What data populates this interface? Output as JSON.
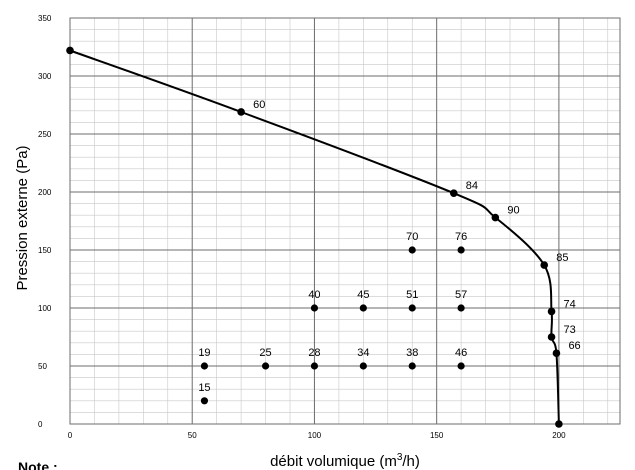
{
  "chart_data": {
    "type": "scatter",
    "xlabel_main": "débit volumique (m",
    "xlabel_sup": "3",
    "xlabel_end": "/h)",
    "ylabel": "Pression externe (Pa)",
    "note": "Note :",
    "xlim": [
      0,
      225
    ],
    "ylim": [
      0,
      350
    ],
    "x_ticks": [
      0,
      50,
      100,
      150,
      200
    ],
    "y_ticks": [
      0,
      50,
      100,
      150,
      200,
      250,
      300,
      350
    ],
    "minor_x_step": 10,
    "minor_y_step": 10,
    "grid": true,
    "colors": {
      "major_grid": "#6e6e6e",
      "minor_grid": "#c8c8c8",
      "curve": "#000000",
      "point": "#000000"
    },
    "curve_points": [
      {
        "x": 0,
        "y": 322
      },
      {
        "x": 70,
        "y": 269,
        "label": "60"
      },
      {
        "x": 157,
        "y": 199,
        "label": "84"
      },
      {
        "x": 174,
        "y": 178,
        "label": "90"
      },
      {
        "x": 194,
        "y": 137,
        "label": "85"
      },
      {
        "x": 197,
        "y": 97,
        "label": "74"
      },
      {
        "x": 197,
        "y": 75,
        "label": "73"
      },
      {
        "x": 199,
        "y": 61,
        "label": "66"
      },
      {
        "x": 200,
        "y": 0
      }
    ],
    "points": [
      {
        "x": 55,
        "y": 20,
        "label": "15"
      },
      {
        "x": 55,
        "y": 50,
        "label": "19"
      },
      {
        "x": 80,
        "y": 50,
        "label": "25"
      },
      {
        "x": 100,
        "y": 50,
        "label": "28"
      },
      {
        "x": 120,
        "y": 50,
        "label": "34"
      },
      {
        "x": 140,
        "y": 50,
        "label": "38"
      },
      {
        "x": 160,
        "y": 50,
        "label": "46"
      },
      {
        "x": 100,
        "y": 100,
        "label": "40"
      },
      {
        "x": 120,
        "y": 100,
        "label": "45"
      },
      {
        "x": 140,
        "y": 100,
        "label": "51"
      },
      {
        "x": 160,
        "y": 100,
        "label": "57"
      },
      {
        "x": 140,
        "y": 150,
        "label": "70"
      },
      {
        "x": 160,
        "y": 150,
        "label": "76"
      }
    ]
  }
}
